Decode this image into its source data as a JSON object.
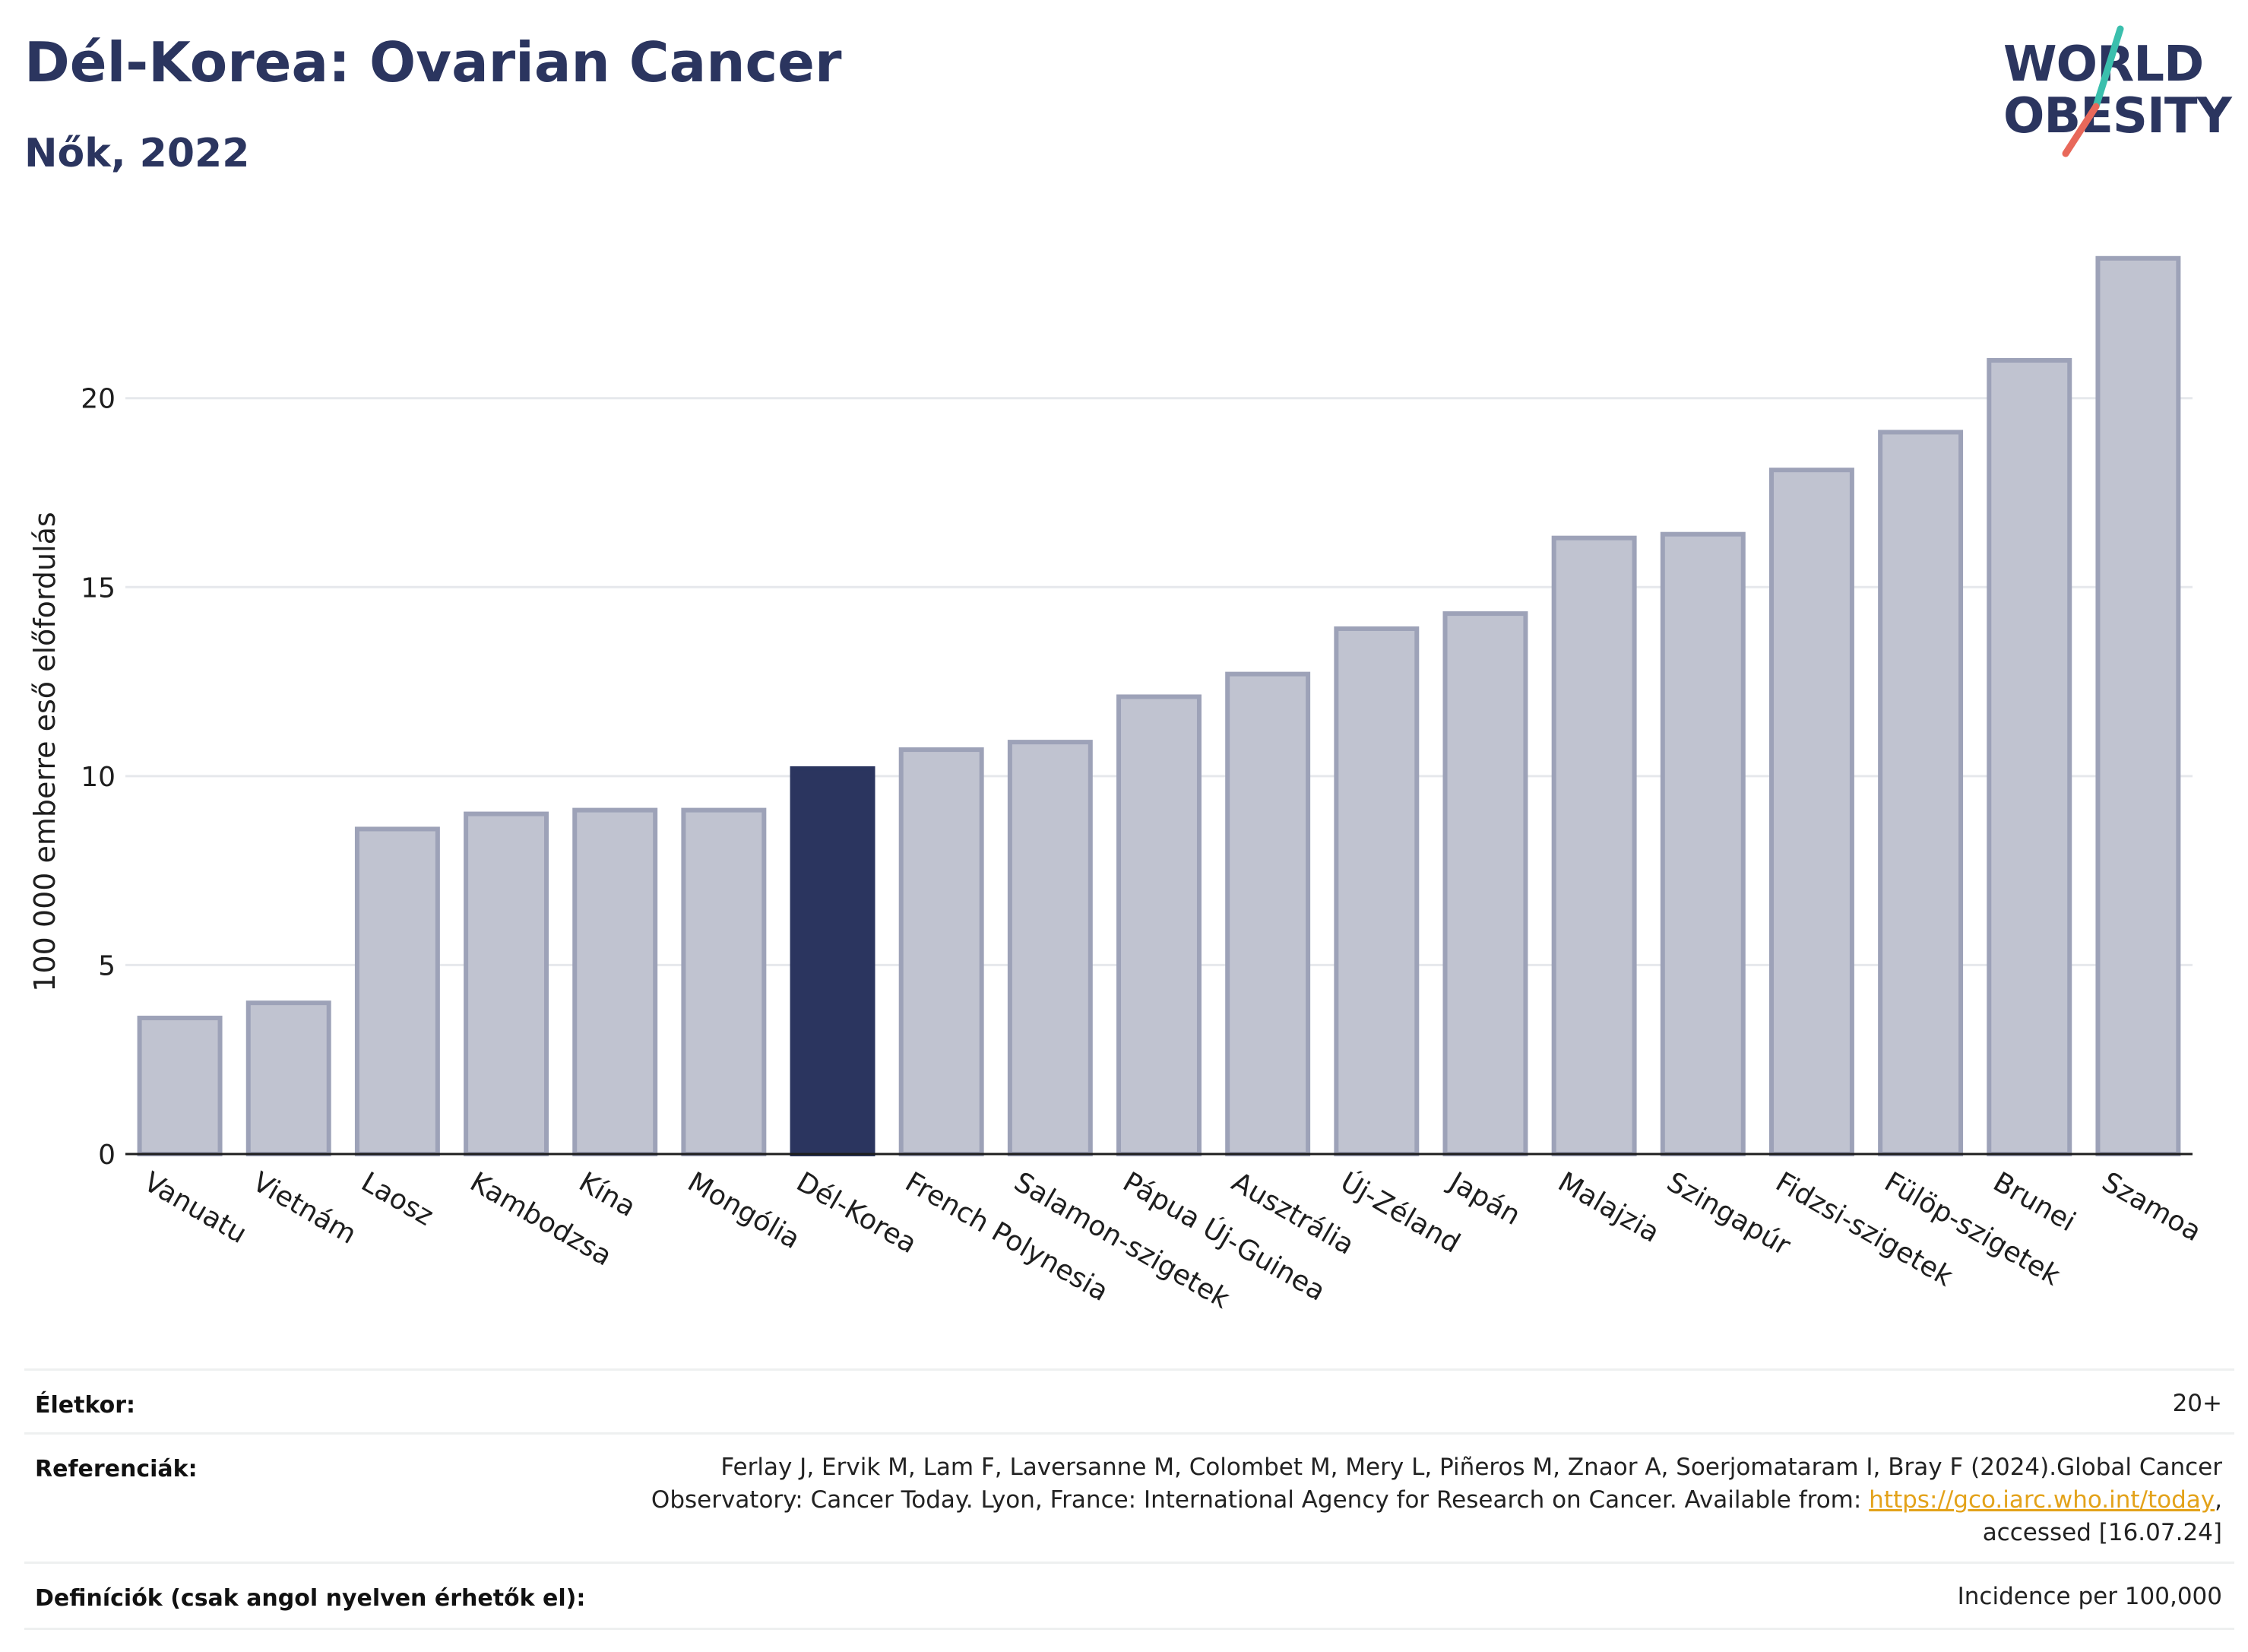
{
  "header": {
    "title": "Dél-Korea: Ovarian Cancer",
    "subtitle": "Nők, 2022"
  },
  "logo": {
    "line1": "WORLD",
    "line2": "OBESITY",
    "colors": {
      "text": "#2b355f",
      "slash_top": "#3bbfad",
      "slash_bottom": "#e8685a"
    }
  },
  "colors": {
    "bar": "#c0c3d0",
    "bar_border": "#9da2b8",
    "highlight": "#2b355f",
    "grid": "#e6e8ec",
    "axis": "#1e1e1e"
  },
  "chart_data": {
    "type": "bar",
    "categories": [
      "Vanuatu",
      "Vietnám",
      "Laosz",
      "Kambodzsa",
      "Kína",
      "Mongólia",
      "Dél-Korea",
      "French Polynesia",
      "Salamon-szigetek",
      "Pápua Új-Guinea",
      "Ausztrália",
      "Új-Zéland",
      "Japán",
      "Malajzia",
      "Szingapúr",
      "Fidzsi-szigetek",
      "Fülöp-szigetek",
      "Brunei",
      "Szamoa"
    ],
    "values": [
      3.6,
      4.0,
      8.6,
      9.0,
      9.1,
      9.1,
      10.2,
      10.7,
      10.9,
      12.1,
      12.7,
      13.9,
      14.3,
      16.3,
      16.4,
      18.1,
      19.1,
      21.0,
      23.7
    ],
    "highlight": "Dél-Korea",
    "ylabel": "100 000 emberre eső előfordulás",
    "xlabel": "",
    "ylim": [
      0,
      24.5
    ],
    "yticks": [
      0,
      5,
      10,
      15,
      20
    ],
    "grid": true
  },
  "info": {
    "age_label": "Életkor:",
    "age_value": "20+",
    "refs_label": "Referenciák:",
    "refs_line1": "Ferlay J, Ervik M, Lam F, Laversanne M, Colombet M, Mery L, Piñeros M, Znaor A, Soerjomataram I, Bray F (2024).Global Cancer",
    "refs_line2_pre": "Observatory: Cancer Today. Lyon, France: International Agency for Research on Cancer. Available from: ",
    "refs_link": "https://gco.iarc.who.int/today",
    "refs_line2_post": ",",
    "refs_line3": "accessed [16.07.24]",
    "defs_label": "Definíciók (csak angol nyelven érhetők el):",
    "defs_value": "Incidence per 100,000"
  }
}
